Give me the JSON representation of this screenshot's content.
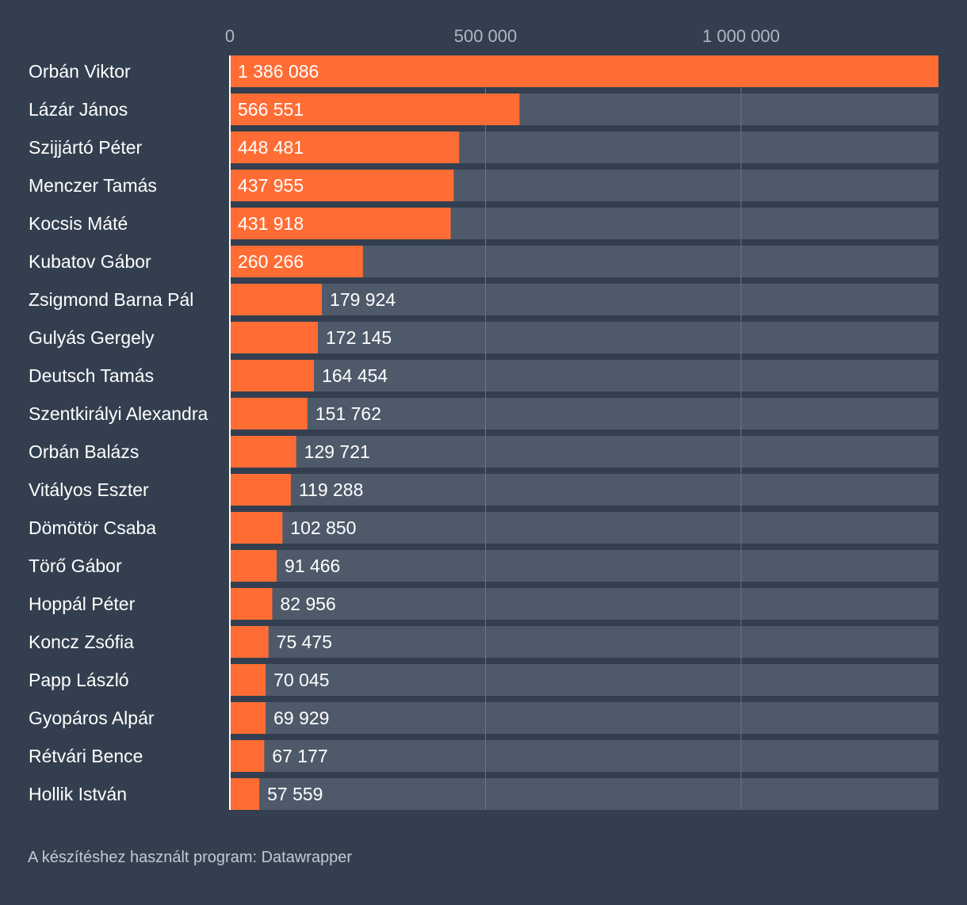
{
  "chart_data": {
    "type": "bar",
    "orientation": "horizontal",
    "title": "",
    "xlabel": "",
    "ylabel": "",
    "xlim": [
      0,
      1386086
    ],
    "ticks": [
      {
        "value": 0,
        "label": "0"
      },
      {
        "value": 500000,
        "label": "500 000"
      },
      {
        "value": 1000000,
        "label": "1 000 000"
      }
    ],
    "categories": [
      "Orbán Viktor",
      "Lázár János",
      "Szijjártó Péter",
      "Menczer Tamás",
      "Kocsis Máté",
      "Kubatov Gábor",
      "Zsigmond Barna Pál",
      "Gulyás Gergely",
      "Deutsch Tamás",
      "Szentkirályi Alexandra",
      "Orbán Balázs",
      "Vitályos Eszter",
      "Dömötör Csaba",
      "Törő Gábor",
      "Hoppál Péter",
      "Koncz Zsófia",
      "Papp László",
      "Gyopáros Alpár",
      "Rétvári Bence",
      "Hollik István"
    ],
    "values": [
      1386086,
      566551,
      448481,
      437955,
      431918,
      260266,
      179924,
      172145,
      164454,
      151762,
      129721,
      119288,
      102850,
      91466,
      82956,
      75475,
      70045,
      69929,
      67177,
      57559
    ],
    "value_labels": [
      "1 386 086",
      "566 551",
      "448 481",
      "437 955",
      "431 918",
      "260 266",
      "179 924",
      "172 145",
      "164 454",
      "151 762",
      "129 721",
      "119 288",
      "102 850",
      "91 466",
      "82 956",
      "75 475",
      "70 045",
      "69 929",
      "67 177",
      "57 559"
    ],
    "colors": {
      "bar": "#ff6d35",
      "track": "#4e5a6a",
      "background": "#333f4f",
      "grid": "#6b7685"
    }
  },
  "footer": {
    "credit": "A készítéshez használt program: Datawrapper"
  }
}
